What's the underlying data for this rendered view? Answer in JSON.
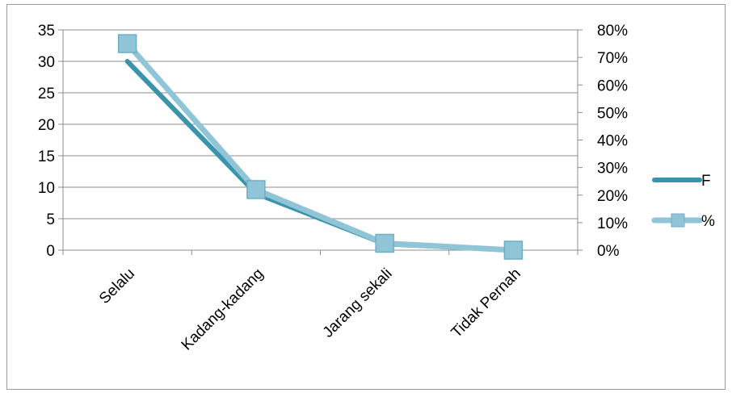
{
  "chart_data": {
    "type": "line",
    "categories": [
      "Selalu",
      "Kadang-kadang",
      "Jarang sekali",
      "Tidak Pernah"
    ],
    "series": [
      {
        "name": "F",
        "axis": "left",
        "values": [
          30,
          9,
          1,
          0
        ],
        "color": "#3a94ab",
        "marker": "none"
      },
      {
        "name": "%",
        "axis": "right",
        "values": [
          0.75,
          0.22,
          0.025,
          0.0
        ],
        "color": "#8fc5d6",
        "marker": "square"
      }
    ],
    "y_left": {
      "ylim": [
        0,
        35
      ],
      "ticks": [
        "0",
        "5",
        "10",
        "15",
        "20",
        "25",
        "30",
        "35"
      ]
    },
    "y_right": {
      "ylim": [
        0,
        0.8
      ],
      "ticks": [
        "0%",
        "10%",
        "20%",
        "30%",
        "40%",
        "50%",
        "60%",
        "70%",
        "80%"
      ]
    },
    "grid": "horizontal",
    "legend": "right",
    "title": "",
    "xlabel": "",
    "ylabel": ""
  }
}
